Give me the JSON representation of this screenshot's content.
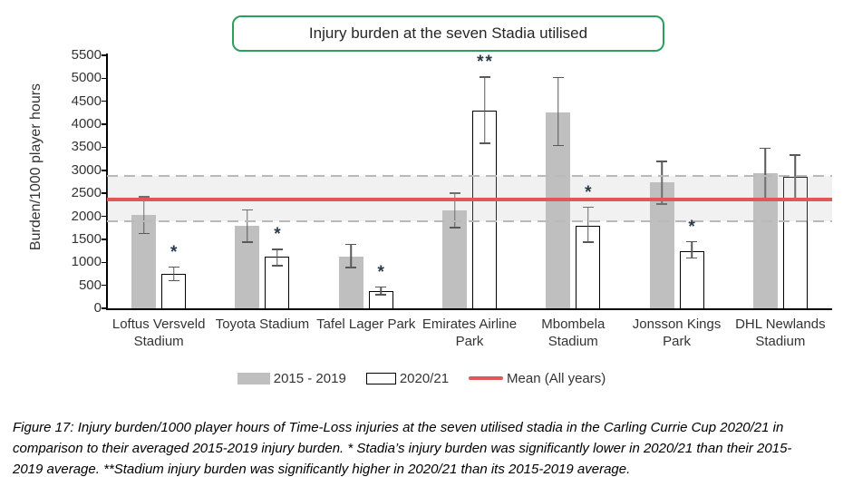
{
  "title": "Injury burden at the seven Stadia utilised",
  "caption": "Figure 17: Injury burden/1000 player hours of Time-Loss injuries at the seven utilised stadia in the Carling Currie Cup 2020/21 in comparison to their averaged 2015-2019 injury burden. * Stadia’s injury burden was significantly lower in 2020/21 than their 2015-2019 average. **Stadium injury burden was significantly higher in 2020/21 than its 2015-2019 average.",
  "colors": {
    "title_border": "#2ca05a",
    "bar_2015_2019": "#bfbfbf",
    "bar_2020_21_fill": "#ffffff",
    "bar_2020_21_border": "#000000",
    "mean_line": "#e15759",
    "error_bar": "#595959",
    "band_fill": "#ededed"
  },
  "chart_data": {
    "type": "bar",
    "title": "Injury burden at the seven Stadia utilised",
    "ylabel": "Burden/1000 player hours",
    "xlabel": "",
    "ylim": [
      0,
      5500
    ],
    "ytick_step": 500,
    "grid": false,
    "legend_position": "bottom",
    "categories": [
      "Loftus Versveld\nStadium",
      "Toyota Stadium",
      "Tafel Lager Park",
      "Emirates Airline\nPark",
      "Mbombela\nStadium",
      "Jonsson Kings\nPark",
      "DHL Newlands\nStadium"
    ],
    "series": [
      {
        "name": "2015 - 2019",
        "values": [
          2025,
          1790,
          1130,
          2130,
          4250,
          2750,
          2930
        ],
        "error_low": [
          1615,
          1420,
          870,
          1740,
          3520,
          2250,
          2370
        ],
        "error_high": [
          2440,
          2150,
          1400,
          2520,
          5030,
          3210,
          3490
        ]
      },
      {
        "name": "2020/21",
        "values": [
          750,
          1120,
          380,
          4300,
          1800,
          1250,
          2860
        ],
        "error_low": [
          590,
          910,
          280,
          3570,
          1420,
          1080,
          2370
        ],
        "error_high": [
          910,
          1300,
          480,
          5040,
          2210,
          1460,
          3350
        ]
      }
    ],
    "significance_on_2020_21": [
      "*",
      "*",
      "*",
      "**",
      "*",
      "*",
      ""
    ],
    "mean_line": {
      "label": "Mean (All years)",
      "value": 2365
    },
    "band": {
      "low": 1900,
      "high": 2880
    }
  }
}
